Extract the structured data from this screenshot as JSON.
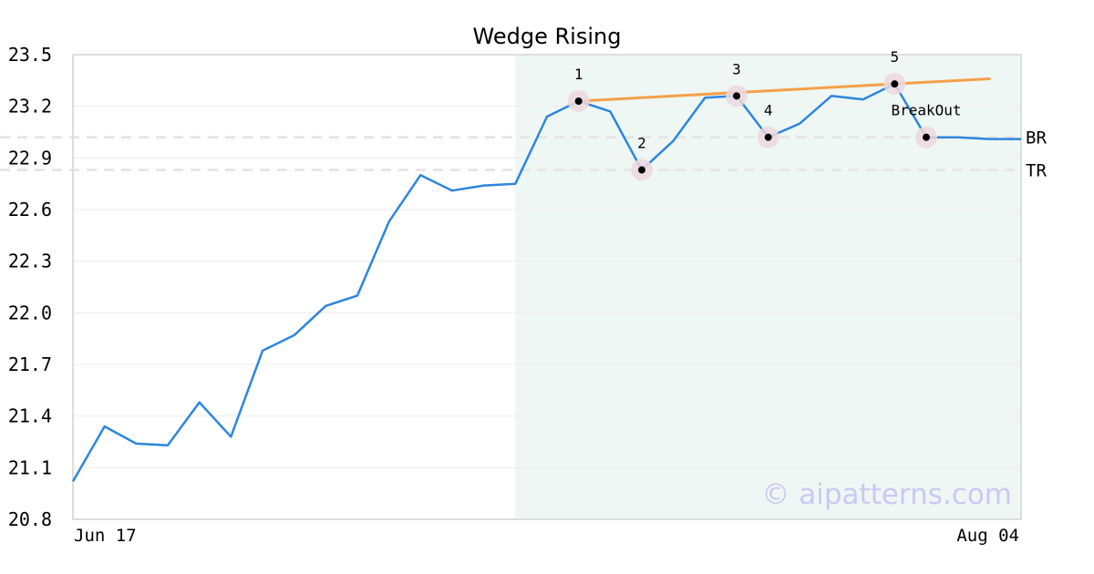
{
  "chart_data": {
    "type": "line",
    "title": "Wedge Rising",
    "xlabel": "",
    "ylabel": "",
    "ylim": [
      20.8,
      23.5
    ],
    "yticks": [
      20.8,
      21.1,
      21.4,
      21.7,
      22.0,
      22.3,
      22.6,
      22.9,
      23.2,
      23.5
    ],
    "x_tick_labels": [
      "Jun 17",
      "Aug 04"
    ],
    "grid": true,
    "colors": {
      "price_line": "#2e86de",
      "trend_line": "#f4a04a",
      "pattern_region": "#eef7f3",
      "marker_ring": "#ecd8de",
      "marker_dot": "#000000",
      "reference_line": "#e3e3e3",
      "frame": "#dddddd",
      "watermark": "#c9c9f4"
    },
    "series": [
      {
        "values": [
          21.02,
          21.34,
          21.24,
          21.23,
          21.48,
          21.28,
          21.78,
          21.87,
          22.04,
          22.1,
          22.53,
          22.8,
          22.71,
          22.74,
          22.75,
          23.14,
          23.23,
          23.17,
          22.83,
          23.0,
          23.25,
          23.26,
          23.02,
          23.1,
          23.26,
          23.24,
          23.33,
          23.02,
          23.02,
          23.01,
          23.01
        ]
      }
    ],
    "pattern_region": {
      "start_index": 14,
      "end_index": 30
    },
    "trend_line": {
      "from": {
        "index": 16,
        "value": 23.23
      },
      "to": {
        "index": 29,
        "value": 23.36
      }
    },
    "points": [
      {
        "label": "1",
        "index": 16,
        "value": 23.23,
        "label_position": "above"
      },
      {
        "label": "2",
        "index": 18,
        "value": 22.83,
        "label_position": "above"
      },
      {
        "label": "3",
        "index": 21,
        "value": 23.26,
        "label_position": "above"
      },
      {
        "label": "4",
        "index": 22,
        "value": 23.02,
        "label_position": "above"
      },
      {
        "label": "5",
        "index": 26,
        "value": 23.33,
        "label_position": "above"
      },
      {
        "label": "BreakOut",
        "index": 27,
        "value": 23.02,
        "label_position": "above"
      }
    ],
    "reference_lines": [
      {
        "label": "BR",
        "value": 23.02
      },
      {
        "label": "TR",
        "value": 22.83
      }
    ],
    "watermark": "© aipatterns.com"
  }
}
